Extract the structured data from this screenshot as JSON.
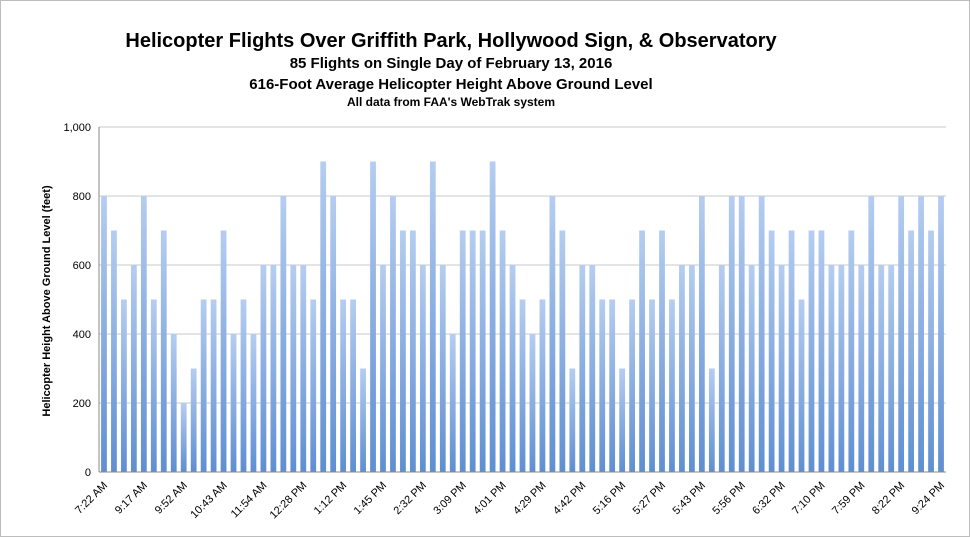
{
  "chart_data": {
    "type": "bar",
    "title": "Helicopter Flights Over Griffith Park, Hollywood Sign, & Observatory",
    "subtitles": [
      "85 Flights on Single Day of February 13, 2016",
      "616-Foot Average Helicopter Height Above Ground Level",
      "All data from FAA's WebTrak system"
    ],
    "xlabel": "",
    "ylabel": "Helicopter Height Above Ground Level (feet)",
    "ylim": [
      0,
      1000
    ],
    "yticks": [
      0,
      200,
      400,
      600,
      800,
      1000
    ],
    "ytick_labels": [
      "0",
      "200",
      "400",
      "600",
      "800",
      "1,000"
    ],
    "grid": true,
    "x_tick_labels": [
      "7:22 AM",
      "9:17 AM",
      "9:52 AM",
      "10:43 AM",
      "11:54 AM",
      "12:28 PM",
      "1:12 PM",
      "1:45 PM",
      "2:32 PM",
      "3:09 PM",
      "4:01 PM",
      "4:29 PM",
      "4:42 PM",
      "5:16 PM",
      "5:27 PM",
      "5:43 PM",
      "5:56 PM",
      "6:32 PM",
      "7:10 PM",
      "7:59 PM",
      "8:22 PM",
      "9:24 PM"
    ],
    "values": [
      800,
      700,
      500,
      600,
      800,
      500,
      700,
      400,
      200,
      300,
      500,
      500,
      700,
      400,
      500,
      400,
      600,
      600,
      800,
      600,
      600,
      500,
      900,
      800,
      500,
      500,
      300,
      900,
      600,
      800,
      700,
      700,
      600,
      900,
      600,
      400,
      700,
      700,
      700,
      900,
      700,
      600,
      500,
      400,
      500,
      800,
      700,
      300,
      600,
      600,
      500,
      500,
      300,
      500,
      700,
      500,
      700,
      500,
      600,
      600,
      800,
      300,
      600,
      800,
      800,
      600,
      800,
      700,
      600,
      700,
      500,
      700,
      700,
      600,
      600,
      700,
      600,
      800,
      600,
      600,
      800,
      700,
      800,
      700,
      800
    ],
    "colors": {
      "bar_top": "#b5cdf0",
      "bar_bottom": "#5f8fd2",
      "grid": "#c8c8c8"
    }
  }
}
